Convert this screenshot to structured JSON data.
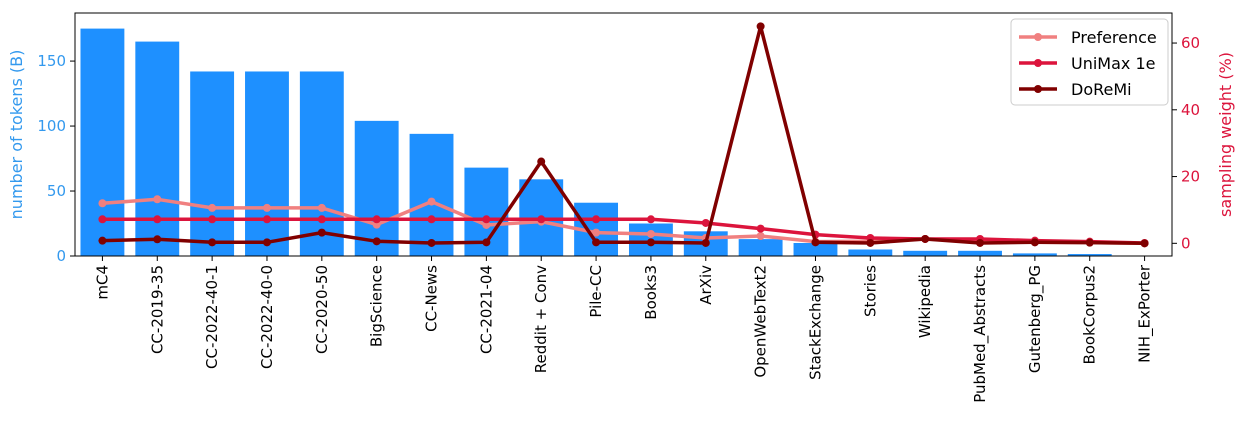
{
  "chart_data": {
    "type": "bar+line",
    "categories": [
      "mC4",
      "CC-2019-35",
      "CC-2022-40-1",
      "CC-2022-40-0",
      "CC-2020-50",
      "BigScience",
      "CC-News",
      "CC-2021-04",
      "Reddit + Conv",
      "Pile-CC",
      "Books3",
      "ArXiv",
      "OpenWebText2",
      "StackExchange",
      "Stories",
      "Wikipedia",
      "PubMed_Abstracts",
      "Gutenberg_PG",
      "BookCorpus2",
      "NIH_ExPorter"
    ],
    "bars": {
      "name": "number of tokens (B)",
      "color": "#1e90ff",
      "values": [
        175,
        165,
        142,
        142,
        142,
        104,
        94,
        68,
        59,
        41,
        25,
        19,
        13,
        10,
        5,
        4,
        4,
        2,
        1.5,
        0.3
      ]
    },
    "y_left": {
      "label": "number of tokens (B)",
      "ticks": [
        0,
        50,
        100,
        150
      ],
      "lim": [
        0,
        187
      ],
      "color": "#3399ee"
    },
    "y_right": {
      "label": "sampling weight (%)",
      "ticks": [
        0,
        20,
        40,
        60
      ],
      "lim": [
        -3.8,
        69
      ],
      "color": "#dc143c"
    },
    "series": [
      {
        "name": "Preference",
        "color": "#f08080",
        "values": [
          12,
          13.2,
          10.6,
          10.6,
          10.6,
          5.6,
          12.5,
          5.5,
          6.5,
          3.2,
          2.8,
          1.6,
          2.2,
          0.5,
          0.6,
          1.3,
          0.6,
          0.3,
          0.2,
          0.0
        ]
      },
      {
        "name": "UniMax 1e",
        "color": "#dc143c",
        "values": [
          7.2,
          7.2,
          7.2,
          7.2,
          7.2,
          7.2,
          7.2,
          7.2,
          7.2,
          7.2,
          7.2,
          6.1,
          4.4,
          2.6,
          1.6,
          1.3,
          1.3,
          0.8,
          0.5,
          0.1
        ]
      },
      {
        "name": "DoReMi",
        "color": "#800000",
        "values": [
          0.8,
          1.2,
          0.3,
          0.3,
          3.2,
          0.6,
          0.1,
          0.3,
          24.5,
          0.3,
          0.3,
          0.1,
          65,
          0.3,
          0.1,
          1.3,
          0.1,
          0.3,
          0.2,
          0.0
        ]
      }
    ],
    "legend": "top-right",
    "grid": false
  }
}
